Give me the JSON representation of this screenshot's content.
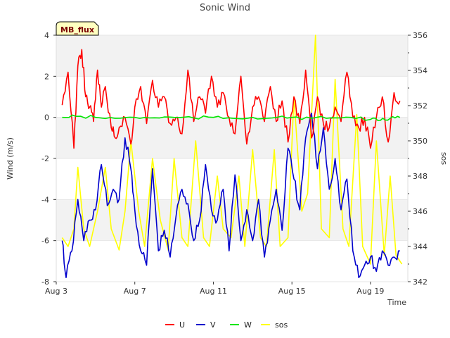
{
  "chart_data": {
    "type": "line",
    "title": "Sonic Wind",
    "badge": "MB_flux",
    "xlabel": "Time",
    "ylabel": "Wind (m/s)",
    "y2label": "sos",
    "xlim": [
      3.0,
      20.9
    ],
    "ylim": [
      -8,
      4
    ],
    "y2lim": [
      342,
      356
    ],
    "x_ticks": [
      {
        "value": 3,
        "label": "Aug 3"
      },
      {
        "value": 7,
        "label": "Aug 7"
      },
      {
        "value": 11,
        "label": "Aug 11"
      },
      {
        "value": 15,
        "label": "Aug 15"
      },
      {
        "value": 19,
        "label": "Aug 19"
      }
    ],
    "y_ticks": [
      4,
      2,
      0,
      -2,
      -4,
      -6,
      -8
    ],
    "y2_ticks": [
      356,
      354,
      352,
      350,
      348,
      346,
      344,
      342
    ],
    "colors": {
      "U": "#ff0000",
      "V": "#0000cc",
      "W": "#00e600",
      "sos": "#ffff00",
      "band": "#f2f2f2",
      "badge_bg": "#ffffc0"
    },
    "series": [
      {
        "name": "U",
        "axis": "left",
        "x": [
          3.3,
          3.6,
          3.9,
          4.1,
          4.3,
          4.5,
          4.7,
          4.9,
          5.1,
          5.3,
          5.5,
          5.8,
          6.0,
          6.2,
          6.5,
          6.8,
          7.0,
          7.3,
          7.6,
          7.9,
          8.2,
          8.5,
          8.8,
          9.1,
          9.4,
          9.7,
          10.0,
          10.3,
          10.6,
          10.9,
          11.2,
          11.5,
          11.8,
          12.1,
          12.4,
          12.7,
          13.0,
          13.3,
          13.6,
          13.9,
          14.2,
          14.5,
          14.8,
          15.1,
          15.4,
          15.7,
          16.0,
          16.3,
          16.6,
          16.9,
          17.2,
          17.5,
          17.8,
          18.1,
          18.4,
          18.7,
          19.0,
          19.3,
          19.6,
          19.9,
          20.2,
          20.5
        ],
        "values": [
          0.6,
          2.2,
          -1.5,
          2.5,
          3.3,
          1.0,
          0.5,
          -0.2,
          2.3,
          0.5,
          1.5,
          -0.5,
          -1.0,
          -0.5,
          0.0,
          -1.3,
          0.5,
          1.5,
          -0.3,
          1.8,
          0.5,
          1.0,
          -0.3,
          0.0,
          -0.8,
          2.3,
          -0.2,
          1.0,
          0.2,
          2.0,
          0.5,
          1.2,
          0.0,
          -0.8,
          2.0,
          -1.3,
          0.5,
          1.0,
          -0.2,
          1.5,
          -0.2,
          0.8,
          -1.2,
          1.0,
          -0.3,
          2.3,
          -1.0,
          1.0,
          -0.3,
          -0.5,
          0.5,
          -0.2,
          2.2,
          0.0,
          -0.5,
          0.0,
          -1.5,
          0.0,
          1.0,
          -1.2,
          1.2,
          0.8
        ]
      },
      {
        "name": "V",
        "axis": "left",
        "x": [
          3.3,
          3.5,
          3.8,
          4.1,
          4.4,
          4.7,
          5.0,
          5.3,
          5.6,
          5.9,
          6.2,
          6.5,
          6.8,
          7.0,
          7.3,
          7.6,
          7.9,
          8.2,
          8.5,
          8.8,
          9.1,
          9.4,
          9.7,
          10.0,
          10.3,
          10.6,
          10.9,
          11.2,
          11.5,
          11.8,
          12.1,
          12.4,
          12.7,
          13.0,
          13.3,
          13.6,
          13.9,
          14.2,
          14.5,
          14.8,
          15.1,
          15.4,
          15.7,
          16.0,
          16.3,
          16.6,
          16.9,
          17.2,
          17.5,
          17.8,
          18.1,
          18.4,
          18.7,
          19.0,
          19.3,
          19.6,
          19.9,
          20.2,
          20.5
        ],
        "values": [
          -6.0,
          -7.8,
          -6.5,
          -4.0,
          -6.0,
          -5.0,
          -4.5,
          -2.3,
          -4.3,
          -3.5,
          -4.0,
          -1.0,
          -2.5,
          -4.5,
          -6.5,
          -7.2,
          -2.5,
          -6.5,
          -5.5,
          -6.8,
          -4.8,
          -3.5,
          -4.2,
          -6.0,
          -5.0,
          -2.3,
          -4.5,
          -5.0,
          -3.5,
          -6.5,
          -2.8,
          -6.0,
          -4.5,
          -6.0,
          -4.0,
          -6.8,
          -5.0,
          -3.5,
          -5.5,
          -1.5,
          -3.0,
          -4.5,
          -1.0,
          0.2,
          -2.5,
          -0.5,
          -3.5,
          -2.0,
          -4.5,
          -3.0,
          -6.5,
          -7.8,
          -7.2,
          -6.8,
          -7.5,
          -6.5,
          -7.2,
          -6.8,
          -6.5
        ]
      },
      {
        "name": "W",
        "axis": "left",
        "x": [
          3.3,
          4.0,
          5.0,
          6.0,
          7.0,
          8.0,
          9.0,
          10.0,
          11.0,
          12.0,
          13.0,
          14.0,
          15.0,
          16.0,
          17.0,
          18.0,
          19.0,
          19.5,
          20.0,
          20.5
        ],
        "values": [
          0.0,
          0.05,
          0.0,
          -0.05,
          0.0,
          -0.02,
          0.0,
          -0.03,
          0.0,
          -0.05,
          0.0,
          -0.03,
          0.0,
          -0.05,
          -0.02,
          0.0,
          -0.1,
          -0.15,
          -0.05,
          0.0
        ]
      },
      {
        "name": "sos",
        "axis": "right",
        "x": [
          3.3,
          3.6,
          3.9,
          4.1,
          4.4,
          4.7,
          5.1,
          5.5,
          5.8,
          6.2,
          6.5,
          6.8,
          7.2,
          7.5,
          7.9,
          8.3,
          8.7,
          9.0,
          9.4,
          9.7,
          10.1,
          10.5,
          10.8,
          11.2,
          11.5,
          11.9,
          12.3,
          12.6,
          13.0,
          13.4,
          13.7,
          14.1,
          14.4,
          14.8,
          15.1,
          15.5,
          15.8,
          16.2,
          16.5,
          16.9,
          17.2,
          17.6,
          17.9,
          18.3,
          18.6,
          19.0,
          19.3,
          19.7,
          20.0,
          20.3,
          20.6
        ],
        "values": [
          344.5,
          344.0,
          345.0,
          348.5,
          345.0,
          344.0,
          346.0,
          348.5,
          345.0,
          343.8,
          346.0,
          350.0,
          346.0,
          344.0,
          349.0,
          345.5,
          343.8,
          349.0,
          344.5,
          344.0,
          350.0,
          344.5,
          344.0,
          348.0,
          345.0,
          344.5,
          348.0,
          344.0,
          349.5,
          344.5,
          344.0,
          349.5,
          344.0,
          344.5,
          352.5,
          346.0,
          347.0,
          356.0,
          345.0,
          344.5,
          353.5,
          345.0,
          344.0,
          351.5,
          344.0,
          343.0,
          350.0,
          343.5,
          348.0,
          343.5,
          343.0
        ]
      }
    ],
    "legend": [
      "U",
      "V",
      "W",
      "sos"
    ],
    "legend_position": "bottom-center"
  }
}
